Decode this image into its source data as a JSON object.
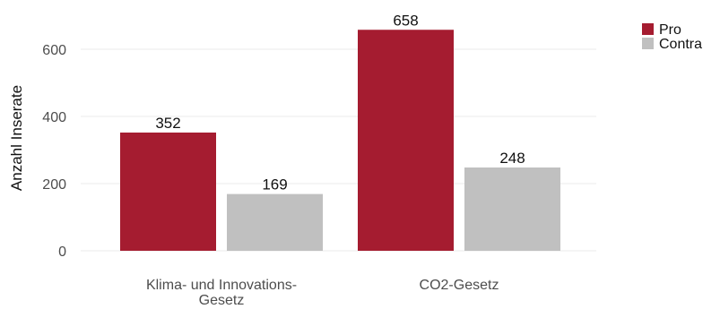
{
  "chart_data": {
    "type": "bar",
    "categories": [
      "Klima- und Innovations-\nGesetz",
      "CO2-Gesetz"
    ],
    "series": [
      {
        "name": "Pro",
        "values": [
          352,
          658
        ],
        "color": "#a51c30"
      },
      {
        "name": "Contra",
        "values": [
          169,
          248
        ],
        "color": "#c0c0c0"
      }
    ],
    "title": "",
    "xlabel": "",
    "ylabel": "Anzahl Inserate",
    "ylim": [
      0,
      700
    ],
    "yticks": [
      0,
      200,
      400,
      600
    ],
    "grid": true,
    "legend_position": "top-right",
    "data_labels": true
  }
}
